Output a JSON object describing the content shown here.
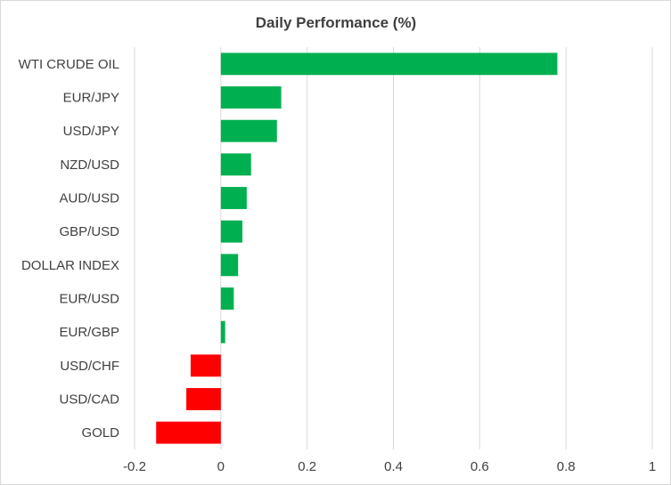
{
  "chart_data": {
    "type": "bar",
    "orientation": "horizontal",
    "title": "Daily Performance (%)",
    "xlabel": "",
    "ylabel": "",
    "xlim": [
      -0.2,
      1
    ],
    "x_ticks": [
      -0.2,
      0,
      0.2,
      0.4,
      0.6,
      0.8,
      1
    ],
    "x_tick_labels": [
      "-0.2",
      "0",
      "0.2",
      "0.4",
      "0.6",
      "0.8",
      "1"
    ],
    "grid": "vertical",
    "legend": "none",
    "categories": [
      "WTI CRUDE OIL",
      "EUR/JPY",
      "USD/JPY",
      "NZD/USD",
      "AUD/USD",
      "GBP/USD",
      "DOLLAR INDEX",
      "EUR/USD",
      "EUR/GBP",
      "USD/CHF",
      "USD/CAD",
      "GOLD"
    ],
    "values": [
      0.78,
      0.14,
      0.13,
      0.07,
      0.06,
      0.05,
      0.04,
      0.03,
      0.01,
      -0.07,
      -0.08,
      -0.15
    ],
    "colors": {
      "positive": "#00b050",
      "negative": "#ff0000",
      "grid": "#d9d9d9",
      "text": "#404040"
    }
  }
}
